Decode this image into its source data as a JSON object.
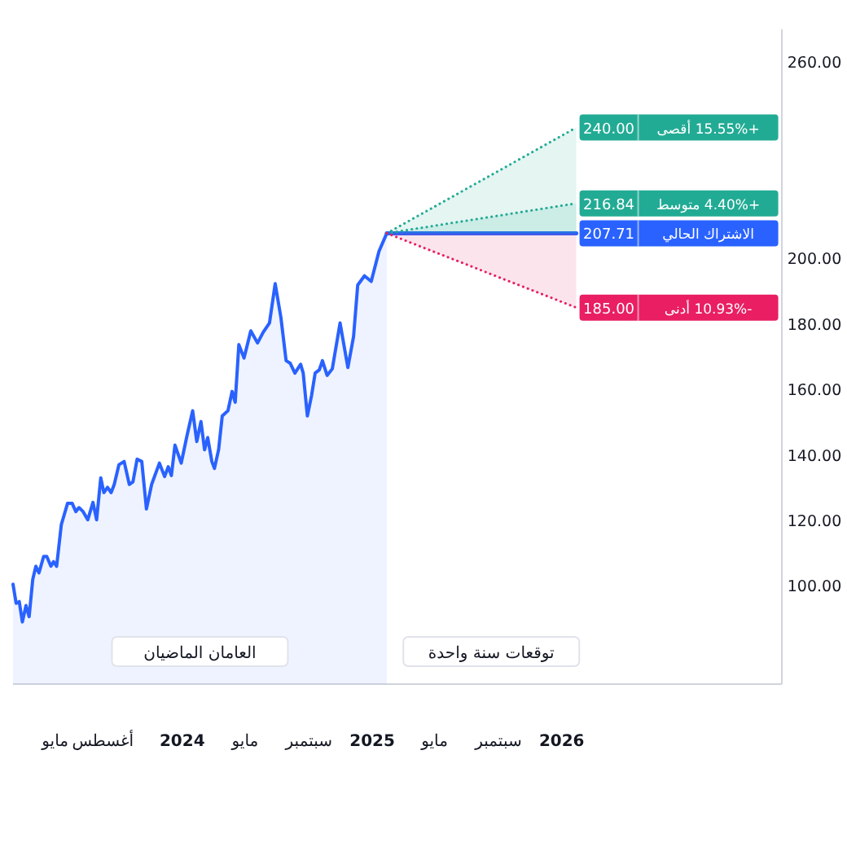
{
  "chart_data": {
    "type": "area",
    "xlim": [
      "2023-02-09",
      "2027-03-01"
    ],
    "ylim": [
      70,
      270
    ],
    "yticks": [
      {
        "value": 100,
        "label": "100.00"
      },
      {
        "value": 120,
        "label": "120.00"
      },
      {
        "value": 140,
        "label": "140.00"
      },
      {
        "value": 160,
        "label": "160.00"
      },
      {
        "value": 180,
        "label": "180.00"
      },
      {
        "value": 200,
        "label": "200.00"
      },
      {
        "value": 260,
        "label": "260.00"
      }
    ],
    "xticks": [
      {
        "value": "2023-05",
        "label": "مايو"
      },
      {
        "value": "2023-08",
        "label": "أغسطس"
      },
      {
        "value": "2024-01",
        "label": "2024"
      },
      {
        "value": "2024-05",
        "label": "مايو"
      },
      {
        "value": "2024-09",
        "label": "سبتمبر"
      },
      {
        "value": "2025-01",
        "label": "2025"
      },
      {
        "value": "2025-05",
        "label": "مايو"
      },
      {
        "value": "2025-09",
        "label": "سبتمبر"
      },
      {
        "value": "2026-01",
        "label": "2026"
      }
    ],
    "series": [
      {
        "type": "area",
        "color": "#2962ff",
        "x": [
          "2023-02-09",
          "2023-02-15",
          "2023-02-21",
          "2023-02-27",
          "2023-03-06",
          "2023-03-12",
          "2023-03-19",
          "2023-03-25",
          "2023-03-31",
          "2023-04-09",
          "2023-04-15",
          "2023-04-23",
          "2023-04-28",
          "2023-05-04",
          "2023-05-13",
          "2023-05-25",
          "2023-06-03",
          "2023-06-10",
          "2023-06-16",
          "2023-06-24",
          "2023-07-03",
          "2023-07-13",
          "2023-07-20",
          "2023-07-28",
          "2023-08-03",
          "2023-08-10",
          "2023-08-17",
          "2023-08-23",
          "2023-09-01",
          "2023-09-11",
          "2023-09-21",
          "2023-09-28",
          "2023-10-06",
          "2023-10-15",
          "2023-10-24",
          "2023-11-03",
          "2023-11-18",
          "2023-11-28",
          "2023-12-05",
          "2023-12-11",
          "2023-12-18",
          "2023-12-30",
          "2024-01-10",
          "2024-01-21",
          "2024-01-29",
          "2024-02-06",
          "2024-02-13",
          "2024-02-19",
          "2024-02-27",
          "2024-03-03",
          "2024-03-11",
          "2024-03-18",
          "2024-03-29",
          "2024-04-06",
          "2024-04-12",
          "2024-04-19",
          "2024-04-29",
          "2024-05-12",
          "2024-05-25",
          "2024-06-05",
          "2024-06-17",
          "2024-06-28",
          "2024-07-09",
          "2024-07-19",
          "2024-07-27",
          "2024-08-05",
          "2024-08-16",
          "2024-08-21",
          "2024-08-29",
          "2024-09-06",
          "2024-09-13",
          "2024-09-21",
          "2024-09-27",
          "2024-10-06",
          "2024-10-16",
          "2024-10-31",
          "2024-11-15",
          "2024-11-26",
          "2024-12-04",
          "2024-12-17",
          "2024-12-30",
          "2025-01-14",
          "2025-01-29"
        ],
        "values": [
          100.5,
          94.7,
          95.2,
          89,
          94,
          90.6,
          102,
          106,
          104,
          109,
          109,
          106,
          107.4,
          106,
          118.7,
          125.2,
          125.2,
          122.7,
          123.9,
          122.7,
          120.2,
          125.5,
          120.2,
          133,
          128.5,
          130.1,
          128.5,
          131,
          137,
          138,
          131,
          131.8,
          138.7,
          138,
          123.5,
          131,
          137.5,
          133.4,
          136.4,
          133.7,
          143,
          137.5,
          145.8,
          153.5,
          144.1,
          150.2,
          141.6,
          145.3,
          138,
          135.9,
          141.6,
          151.9,
          153.5,
          159.4,
          156.1,
          173.7,
          169.6,
          177.9,
          174.2,
          177.5,
          180.3,
          192.3,
          182,
          168.8,
          168,
          165,
          167.7,
          165,
          151.9,
          158.1,
          165,
          166,
          168.8,
          164.3,
          166.3,
          180.3,
          166.7,
          176.2,
          191.9,
          194.7,
          193,
          202.2,
          207.71
        ]
      },
      {
        "type": "line",
        "name": "+15.55% أقصى",
        "color": "#22ab94",
        "line_style": "dotted",
        "x": [
          "2025-01-29",
          "2026-01-29"
        ],
        "values": [
          207.71,
          240
        ],
        "value_labels": [
          null,
          "240.00"
        ]
      },
      {
        "type": "line",
        "name": "+4.40% متوسط",
        "color": "#22ab94",
        "line_style": "dotted",
        "x": [
          "2025-01-29",
          "2026-01-29"
        ],
        "values": [
          207.71,
          216.84
        ],
        "value_labels": [
          null,
          "216.84"
        ]
      },
      {
        "type": "line",
        "name": "الاشتراك الحالي",
        "color": "#2962ff",
        "line_style": "solid",
        "x": [
          "2025-01-29",
          "2026-01-29"
        ],
        "values": [
          207.71,
          207.71
        ],
        "value_labels": [
          null,
          "207.71"
        ]
      },
      {
        "type": "line",
        "name": "-10.93% أدنى",
        "color": "#e91e63",
        "line_style": "dotted",
        "x": [
          "2025-01-29",
          "2026-01-29"
        ],
        "values": [
          207.71,
          185
        ],
        "value_labels": [
          null,
          "185.00"
        ]
      }
    ],
    "annotations": [
      "العامان الماضيان",
      "توقعات سنة واحدة"
    ]
  }
}
